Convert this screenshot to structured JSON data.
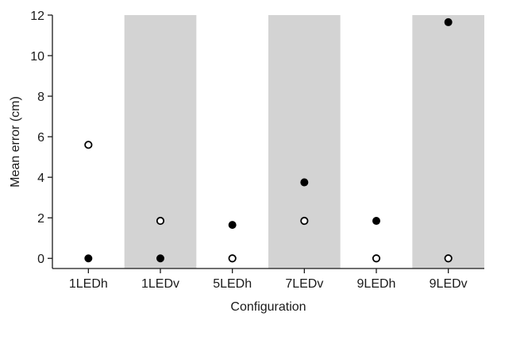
{
  "chart_data": {
    "type": "scatter",
    "title": "",
    "xlabel": "Configuration",
    "ylabel": "Mean error (cm)",
    "categories": [
      "1LEDh",
      "1LEDv",
      "5LEDh",
      "7LEDv",
      "9LEDh",
      "9LEDv"
    ],
    "ylim": [
      -0.5,
      12
    ],
    "yticks": [
      0,
      2,
      4,
      6,
      8,
      10,
      12
    ],
    "shaded_categories": [
      "1LEDv",
      "7LEDv",
      "9LEDv"
    ],
    "grid": false,
    "legend": "none",
    "series": [
      {
        "marker": "filled",
        "values": [
          0,
          0,
          1.65,
          3.75,
          1.85,
          11.65
        ]
      },
      {
        "marker": "open",
        "values": [
          5.6,
          1.85,
          0,
          1.85,
          0,
          0
        ]
      }
    ],
    "colors": {
      "shade": "#d3d3d3",
      "marker": "#000000",
      "axis": "#1a1a1a"
    }
  }
}
